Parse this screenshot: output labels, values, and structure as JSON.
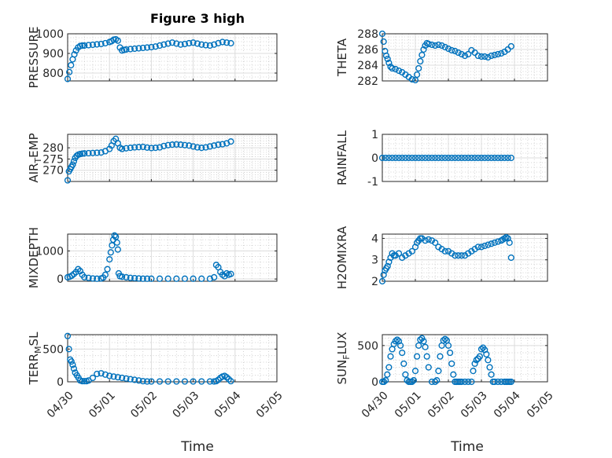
{
  "figure_title": "Figure 3 high",
  "x_axis_label": "Time",
  "x_tick_labels": [
    "04/30",
    "05/01",
    "05/02",
    "05/03",
    "05/04",
    "05/05"
  ],
  "marker_color": "#0072BD",
  "chart_data": [
    {
      "type": "scatter",
      "title": "Figure 3 high",
      "ylabel": "PRESSURE",
      "yticks": [
        800,
        900,
        1000
      ],
      "ylim": [
        760,
        1000
      ],
      "xlim": [
        0,
        5
      ],
      "grid": true,
      "x": [
        0,
        0.04,
        0.08,
        0.12,
        0.16,
        0.2,
        0.25,
        0.3,
        0.35,
        0.4,
        0.5,
        0.6,
        0.7,
        0.8,
        0.9,
        1.0,
        1.05,
        1.1,
        1.15,
        1.2,
        1.25,
        1.3,
        1.35,
        1.4,
        1.5,
        1.6,
        1.7,
        1.8,
        1.9,
        2.0,
        2.1,
        2.2,
        2.3,
        2.4,
        2.5,
        2.6,
        2.7,
        2.8,
        2.9,
        3.0,
        3.1,
        3.2,
        3.3,
        3.4,
        3.5,
        3.6,
        3.7,
        3.8,
        3.9
      ],
      "y": [
        770,
        805,
        840,
        870,
        895,
        915,
        930,
        938,
        940,
        940,
        942,
        944,
        946,
        948,
        952,
        958,
        962,
        970,
        972,
        965,
        930,
        915,
        918,
        920,
        922,
        924,
        926,
        928,
        930,
        932,
        935,
        940,
        945,
        950,
        955,
        950,
        945,
        948,
        952,
        955,
        950,
        945,
        942,
        940,
        945,
        952,
        958,
        955,
        952
      ]
    },
    {
      "type": "scatter",
      "ylabel": "THETA",
      "yticks": [
        282,
        284,
        286,
        288
      ],
      "ylim": [
        282,
        288
      ],
      "xlim": [
        0,
        5
      ],
      "grid": true,
      "x": [
        0,
        0.04,
        0.08,
        0.12,
        0.16,
        0.2,
        0.25,
        0.3,
        0.4,
        0.5,
        0.6,
        0.7,
        0.8,
        0.9,
        1.0,
        1.05,
        1.1,
        1.15,
        1.2,
        1.25,
        1.3,
        1.35,
        1.4,
        1.5,
        1.6,
        1.7,
        1.8,
        1.9,
        2.0,
        2.1,
        2.2,
        2.3,
        2.4,
        2.5,
        2.6,
        2.7,
        2.8,
        2.9,
        3.0,
        3.1,
        3.2,
        3.3,
        3.4,
        3.5,
        3.6,
        3.7,
        3.8,
        3.9
      ],
      "y": [
        288,
        287,
        285.8,
        285.2,
        284.8,
        284.3,
        283.8,
        283.6,
        283.5,
        283.3,
        283.1,
        282.8,
        282.5,
        282.2,
        282.1,
        282.8,
        283.6,
        284.5,
        285.3,
        286,
        286.5,
        286.8,
        286.7,
        286.6,
        286.5,
        286.6,
        286.5,
        286.3,
        286.1,
        285.9,
        285.8,
        285.6,
        285.4,
        285.2,
        285.4,
        285.9,
        285.6,
        285.2,
        285.1,
        285.1,
        285.0,
        285.2,
        285.3,
        285.4,
        285.5,
        285.7,
        286.0,
        286.4
      ]
    },
    {
      "type": "scatter",
      "ylabel": "AIR_TEMP",
      "ylabel_display": {
        "before": "AIR",
        "sub": "T",
        "after": "EMP"
      },
      "yticks": [
        270,
        275,
        280
      ],
      "ylim": [
        265,
        286
      ],
      "xlim": [
        0,
        5
      ],
      "grid": true,
      "x": [
        0,
        0.03,
        0.06,
        0.09,
        0.12,
        0.15,
        0.18,
        0.22,
        0.26,
        0.3,
        0.35,
        0.4,
        0.5,
        0.6,
        0.7,
        0.8,
        0.9,
        1.0,
        1.05,
        1.1,
        1.15,
        1.2,
        1.25,
        1.3,
        1.4,
        1.5,
        1.6,
        1.7,
        1.8,
        1.9,
        2.0,
        2.1,
        2.2,
        2.3,
        2.4,
        2.5,
        2.6,
        2.7,
        2.8,
        2.9,
        3.0,
        3.1,
        3.2,
        3.3,
        3.4,
        3.5,
        3.6,
        3.7,
        3.8,
        3.9
      ],
      "y": [
        265.5,
        269.5,
        270.5,
        271.5,
        272.5,
        274,
        275.5,
        276.5,
        277,
        277.2,
        277.4,
        277.5,
        277.6,
        277.7,
        277.8,
        277.9,
        278.5,
        279.5,
        281,
        283,
        284,
        282,
        280,
        279.5,
        279.8,
        280,
        280.2,
        280.3,
        280.4,
        280.1,
        279.9,
        280,
        280.2,
        280.8,
        281.2,
        281.4,
        281.5,
        281.4,
        281.2,
        281.0,
        280.6,
        280.2,
        280.0,
        280.2,
        280.6,
        281.0,
        281.4,
        281.6,
        282.0,
        282.8
      ]
    },
    {
      "type": "scatter",
      "ylabel": "RAINFALL",
      "yticks": [
        -1,
        0,
        1
      ],
      "ylim": [
        -1,
        1
      ],
      "xlim": [
        0,
        5
      ],
      "grid": true,
      "x": [
        0,
        0.1,
        0.2,
        0.3,
        0.4,
        0.5,
        0.6,
        0.7,
        0.8,
        0.9,
        1.0,
        1.1,
        1.2,
        1.3,
        1.4,
        1.5,
        1.6,
        1.7,
        1.8,
        1.9,
        2.0,
        2.1,
        2.2,
        2.3,
        2.4,
        2.5,
        2.6,
        2.7,
        2.8,
        2.9,
        3.0,
        3.1,
        3.2,
        3.3,
        3.4,
        3.5,
        3.6,
        3.7,
        3.8,
        3.9
      ],
      "y": [
        0,
        0,
        0,
        0,
        0,
        0,
        0,
        0,
        0,
        0,
        0,
        0,
        0,
        0,
        0,
        0,
        0,
        0,
        0,
        0,
        0,
        0,
        0,
        0,
        0,
        0,
        0,
        0,
        0,
        0,
        0,
        0,
        0,
        0,
        0,
        0,
        0,
        0,
        0,
        0
      ]
    },
    {
      "type": "scatter",
      "ylabel": "MIXDEPTH",
      "yticks": [
        0,
        1000
      ],
      "ylim": [
        -80,
        1600
      ],
      "xlim": [
        0,
        5
      ],
      "grid": true,
      "x": [
        0,
        0.05,
        0.1,
        0.15,
        0.2,
        0.25,
        0.3,
        0.35,
        0.4,
        0.5,
        0.6,
        0.7,
        0.8,
        0.85,
        0.9,
        0.95,
        1.0,
        1.03,
        1.06,
        1.09,
        1.12,
        1.15,
        1.18,
        1.2,
        1.22,
        1.25,
        1.3,
        1.4,
        1.5,
        1.6,
        1.7,
        1.8,
        1.9,
        2.0,
        2.2,
        2.4,
        2.6,
        2.8,
        3.0,
        3.2,
        3.4,
        3.5,
        3.55,
        3.6,
        3.65,
        3.7,
        3.75,
        3.8,
        3.85,
        3.9
      ],
      "y": [
        60,
        80,
        120,
        180,
        250,
        350,
        280,
        150,
        60,
        40,
        20,
        10,
        20,
        50,
        150,
        350,
        700,
        950,
        1200,
        1400,
        1550,
        1500,
        1300,
        1050,
        200,
        100,
        80,
        60,
        40,
        30,
        20,
        10,
        10,
        10,
        10,
        10,
        10,
        10,
        10,
        10,
        10,
        60,
        500,
        420,
        250,
        150,
        100,
        200,
        150,
        180
      ]
    },
    {
      "type": "scatter",
      "ylabel": "H2OMIXRA",
      "yticks": [
        2,
        3,
        4
      ],
      "ylim": [
        2,
        4.2
      ],
      "xlim": [
        0,
        5
      ],
      "grid": true,
      "x": [
        0,
        0.04,
        0.08,
        0.12,
        0.16,
        0.2,
        0.25,
        0.3,
        0.35,
        0.4,
        0.5,
        0.6,
        0.7,
        0.8,
        0.9,
        1.0,
        1.05,
        1.1,
        1.15,
        1.2,
        1.3,
        1.4,
        1.5,
        1.6,
        1.7,
        1.8,
        1.9,
        2.0,
        2.1,
        2.2,
        2.3,
        2.4,
        2.5,
        2.6,
        2.7,
        2.8,
        2.9,
        3.0,
        3.1,
        3.2,
        3.3,
        3.4,
        3.5,
        3.6,
        3.65,
        3.7,
        3.75,
        3.8,
        3.85,
        3.9
      ],
      "y": [
        2.0,
        2.3,
        2.5,
        2.6,
        2.7,
        2.9,
        3.1,
        3.3,
        3.2,
        3.2,
        3.3,
        3.1,
        3.2,
        3.3,
        3.4,
        3.6,
        3.8,
        3.9,
        4.0,
        4.0,
        3.9,
        3.95,
        3.9,
        3.8,
        3.6,
        3.5,
        3.4,
        3.4,
        3.3,
        3.2,
        3.2,
        3.2,
        3.2,
        3.3,
        3.4,
        3.5,
        3.6,
        3.6,
        3.65,
        3.7,
        3.75,
        3.8,
        3.85,
        3.9,
        3.95,
        4.0,
        4.05,
        4.0,
        3.8,
        3.1
      ]
    },
    {
      "type": "scatter",
      "ylabel": "TERR_MSL",
      "ylabel_display": {
        "before": "TERR",
        "sub": "M",
        "after": "SL"
      },
      "yticks": [
        0,
        500
      ],
      "ylim": [
        0,
        720
      ],
      "xlim": [
        0,
        5
      ],
      "grid": true,
      "x": [
        0,
        0.03,
        0.06,
        0.09,
        0.12,
        0.15,
        0.18,
        0.22,
        0.26,
        0.3,
        0.35,
        0.4,
        0.45,
        0.5,
        0.6,
        0.7,
        0.8,
        0.9,
        1.0,
        1.1,
        1.2,
        1.3,
        1.4,
        1.5,
        1.6,
        1.7,
        1.8,
        1.9,
        2.0,
        2.2,
        2.4,
        2.6,
        2.8,
        3.0,
        3.2,
        3.4,
        3.5,
        3.55,
        3.6,
        3.65,
        3.7,
        3.75,
        3.8,
        3.85,
        3.9
      ],
      "y": [
        700,
        500,
        340,
        310,
        260,
        200,
        140,
        100,
        60,
        20,
        10,
        10,
        10,
        20,
        60,
        120,
        130,
        110,
        90,
        80,
        70,
        60,
        50,
        40,
        30,
        20,
        10,
        5,
        5,
        5,
        5,
        5,
        5,
        5,
        5,
        5,
        5,
        10,
        30,
        60,
        80,
        90,
        70,
        40,
        10
      ]
    },
    {
      "type": "scatter",
      "ylabel": "SUN_FLUX",
      "ylabel_display": {
        "before": "SUN",
        "sub": "F",
        "after": "LUX"
      },
      "yticks": [
        0,
        500
      ],
      "ylim": [
        0,
        650
      ],
      "xlim": [
        0,
        5
      ],
      "grid": true,
      "x": [
        0,
        0.05,
        0.1,
        0.15,
        0.2,
        0.25,
        0.3,
        0.35,
        0.4,
        0.45,
        0.5,
        0.55,
        0.6,
        0.65,
        0.7,
        0.75,
        0.8,
        0.85,
        0.9,
        0.95,
        1.0,
        1.05,
        1.1,
        1.15,
        1.2,
        1.25,
        1.3,
        1.35,
        1.4,
        1.5,
        1.6,
        1.65,
        1.7,
        1.75,
        1.8,
        1.85,
        1.9,
        1.95,
        2.0,
        2.05,
        2.1,
        2.15,
        2.2,
        2.25,
        2.3,
        2.35,
        2.4,
        2.5,
        2.6,
        2.7,
        2.75,
        2.8,
        2.85,
        2.9,
        2.95,
        3.0,
        3.05,
        3.1,
        3.15,
        3.2,
        3.25,
        3.3,
        3.35,
        3.4,
        3.5,
        3.6,
        3.7,
        3.75,
        3.8,
        3.85,
        3.9
      ],
      "y": [
        0,
        0,
        20,
        100,
        200,
        350,
        450,
        520,
        560,
        580,
        560,
        500,
        400,
        250,
        100,
        20,
        0,
        0,
        0,
        20,
        150,
        350,
        500,
        580,
        600,
        560,
        480,
        350,
        200,
        0,
        0,
        20,
        150,
        350,
        500,
        570,
        590,
        570,
        500,
        400,
        250,
        100,
        0,
        0,
        0,
        0,
        0,
        0,
        0,
        0,
        150,
        250,
        300,
        320,
        350,
        450,
        470,
        440,
        380,
        300,
        200,
        100,
        0,
        0,
        0,
        0,
        0,
        0,
        0,
        0,
        0
      ]
    }
  ]
}
